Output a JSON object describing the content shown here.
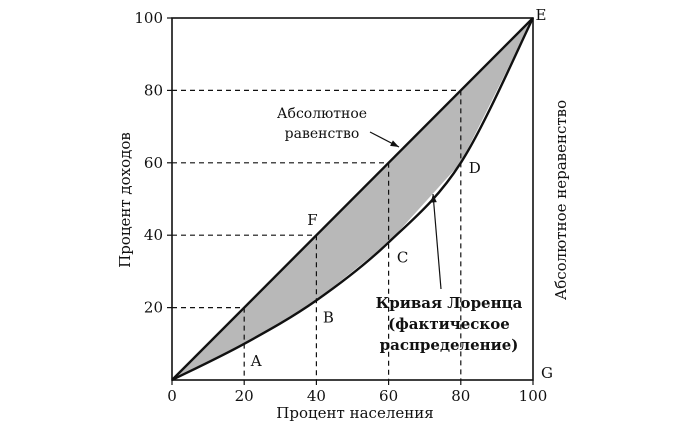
{
  "chart_data": {
    "type": "line",
    "xlabel": "Процент населения",
    "ylabel": "Процент доходов",
    "right_label": "Абсолютное неравенство",
    "xlim": [
      0,
      100
    ],
    "ylim": [
      0,
      100
    ],
    "x_ticks": [
      "0",
      "20",
      "40",
      "60",
      "80",
      "100"
    ],
    "y_ticks": [
      "20",
      "40",
      "60",
      "80",
      "100"
    ],
    "series": [
      {
        "name": "Абсолютное равенство",
        "x": [
          0,
          100
        ],
        "y": [
          0,
          100
        ]
      },
      {
        "name": "Кривая Лоренца",
        "x": [
          0,
          20,
          40,
          60,
          80,
          100
        ],
        "y": [
          0,
          10,
          22,
          38,
          60,
          100
        ]
      }
    ],
    "points": [
      {
        "label": "A",
        "x": 20,
        "y": 10
      },
      {
        "label": "B",
        "x": 40,
        "y": 22
      },
      {
        "label": "C",
        "x": 60,
        "y": 38
      },
      {
        "label": "D",
        "x": 80,
        "y": 60
      },
      {
        "label": "E",
        "x": 100,
        "y": 100
      },
      {
        "label": "F",
        "x": 40,
        "y": 40
      },
      {
        "label": "G",
        "x": 100,
        "y": 0
      }
    ],
    "annotations": {
      "equality": [
        "Абсолютное",
        "равенство"
      ],
      "lorenz": [
        "Кривая Лоренца",
        "(фактическое",
        "распределение)"
      ]
    },
    "shaded_area": true,
    "colors": {
      "shade": "#b8b8b8",
      "line": "#111111"
    }
  }
}
